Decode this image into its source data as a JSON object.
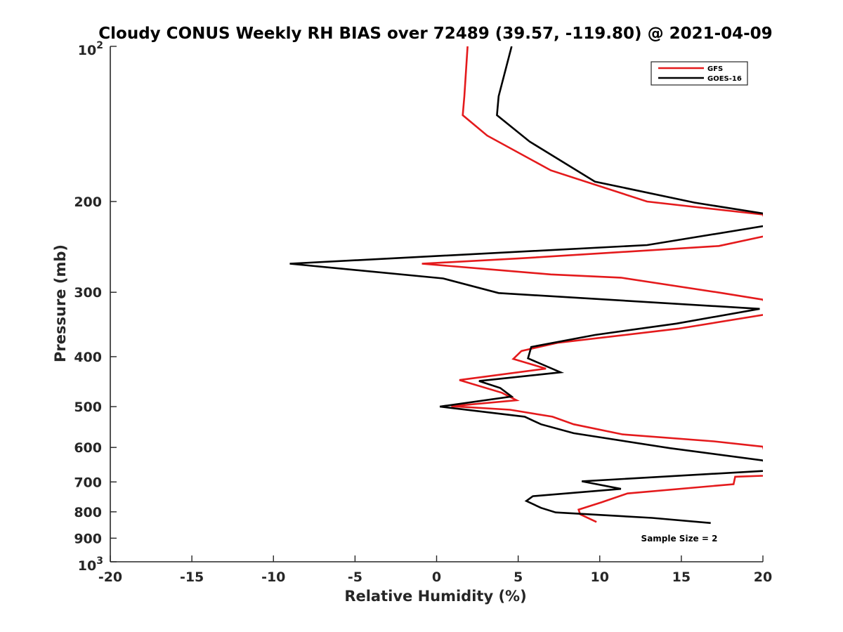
{
  "chart_data": {
    "type": "line",
    "title": "Cloudy CONUS Weekly RH BIAS over 72489 (39.57, -119.80) @ 2021-04-09",
    "xlabel": "Relative Humidity (%)",
    "ylabel": "Pressure (mb)",
    "xlim": [
      -20,
      20
    ],
    "ylim": [
      100,
      1000
    ],
    "y_scale": "log",
    "y_reversed": true,
    "x_ticks": [
      "-20",
      "-15",
      "-10",
      "-5",
      "0",
      "5",
      "10",
      "15",
      "20"
    ],
    "y_ticks": [
      {
        "value": 100,
        "base": "10",
        "exp": "2"
      },
      {
        "value": 200,
        "label": "200"
      },
      {
        "value": 300,
        "label": "300"
      },
      {
        "value": 400,
        "label": "400"
      },
      {
        "value": 500,
        "label": "500"
      },
      {
        "value": 600,
        "label": "600"
      },
      {
        "value": 700,
        "label": "700"
      },
      {
        "value": 800,
        "label": "800"
      },
      {
        "value": 900,
        "label": "900"
      },
      {
        "value": 1000,
        "base": "10",
        "exp": "3"
      }
    ],
    "grid": false,
    "legend_position": "top-right",
    "annotation": "Sample Size = 2",
    "series": [
      {
        "name": "GFS",
        "color": "#e41a1c",
        "points": [
          [
            1.9,
            100
          ],
          [
            1.7,
            125
          ],
          [
            1.6,
            136
          ],
          [
            3.1,
            149
          ],
          [
            7.0,
            174
          ],
          [
            12.9,
            200
          ],
          [
            20.0,
            212
          ],
          [
            20.5,
            232
          ],
          [
            17.3,
            244
          ],
          [
            5.0,
            258
          ],
          [
            -0.9,
            264
          ],
          [
            7.0,
            277
          ],
          [
            11.3,
            281
          ],
          [
            17.5,
            301
          ],
          [
            20.0,
            310
          ],
          [
            20.5,
            330
          ],
          [
            14.8,
            353
          ],
          [
            7.4,
            376
          ],
          [
            5.2,
            390
          ],
          [
            4.7,
            404
          ],
          [
            6.7,
            422
          ],
          [
            1.4,
            444
          ],
          [
            4.0,
            470
          ],
          [
            4.9,
            486
          ],
          [
            0.9,
            499
          ],
          [
            4.5,
            507
          ],
          [
            7.1,
            523
          ],
          [
            8.4,
            541
          ],
          [
            11.4,
            566
          ],
          [
            17.0,
            584
          ],
          [
            20.0,
            598
          ],
          [
            20.5,
            680
          ],
          [
            18.3,
            684
          ],
          [
            18.2,
            707
          ],
          [
            11.7,
            737
          ],
          [
            10.1,
            767
          ],
          [
            8.7,
            792
          ],
          [
            8.8,
            809
          ],
          [
            9.8,
            837
          ]
        ]
      },
      {
        "name": "GOES-16",
        "color": "#000000",
        "points": [
          [
            4.6,
            100
          ],
          [
            3.8,
            125
          ],
          [
            3.7,
            136
          ],
          [
            5.7,
            153
          ],
          [
            9.7,
            183
          ],
          [
            15.8,
            201
          ],
          [
            20.0,
            211
          ],
          [
            20.5,
            222
          ],
          [
            12.9,
            243
          ],
          [
            -9.0,
            264
          ],
          [
            0.4,
            282
          ],
          [
            3.8,
            301
          ],
          [
            19.8,
            323
          ],
          [
            14.7,
            345
          ],
          [
            9.7,
            363
          ],
          [
            5.8,
            383
          ],
          [
            5.6,
            403
          ],
          [
            7.6,
            429
          ],
          [
            2.6,
            446
          ],
          [
            3.9,
            460
          ],
          [
            4.6,
            478
          ],
          [
            0.2,
            500
          ],
          [
            5.4,
            523
          ],
          [
            6.4,
            541
          ],
          [
            8.4,
            563
          ],
          [
            14.3,
            602
          ],
          [
            20.0,
            636
          ],
          [
            20.5,
            665
          ],
          [
            8.9,
            698
          ],
          [
            11.3,
            722
          ],
          [
            5.9,
            746
          ],
          [
            5.5,
            762
          ],
          [
            6.4,
            786
          ],
          [
            7.3,
            802
          ],
          [
            13.2,
            822
          ],
          [
            16.8,
            841
          ]
        ]
      }
    ]
  }
}
